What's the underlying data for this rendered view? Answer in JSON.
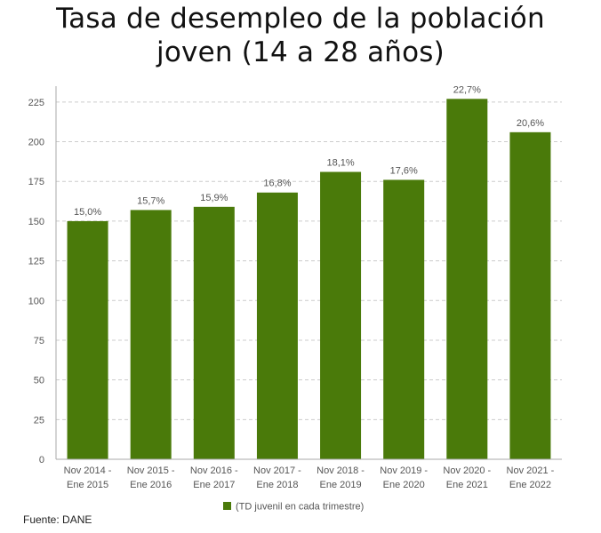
{
  "chart_data": {
    "type": "bar",
    "title": "Tasa de desempleo de la población joven (14 a 28 años)",
    "title_lines": [
      "Tasa de desempleo de la población",
      "joven (14 a 28 años)"
    ],
    "categories": [
      [
        "Nov 2014 -",
        "Ene 2015"
      ],
      [
        "Nov 2015 -",
        "Ene 2016"
      ],
      [
        "Nov 2016 -",
        "Ene 2017"
      ],
      [
        "Nov 2017 -",
        "Ene 2018"
      ],
      [
        "Nov 2018 -",
        "Ene 2019"
      ],
      [
        "Nov 2019 -",
        "Ene 2020"
      ],
      [
        "Nov 2020 -",
        "Ene 2021"
      ],
      [
        "Nov 2021 -",
        "Ene 2022"
      ]
    ],
    "series": [
      {
        "name": "(TD juvenil en cada trimestre)",
        "values": [
          150,
          157,
          159,
          168,
          181,
          176,
          227,
          206
        ],
        "data_labels": [
          "15,0%",
          "15,7%",
          "15,9%",
          "16,8%",
          "18,1%",
          "17,6%",
          "22,7%",
          "20,6%"
        ],
        "color": "#4a7a0a"
      }
    ],
    "ylim": [
      0,
      235
    ],
    "yticks": [
      0,
      25,
      50,
      75,
      100,
      125,
      150,
      175,
      200,
      225
    ],
    "xlabel": "",
    "ylabel": "",
    "grid": true,
    "legend_position": "bottom-center",
    "source": "Fuente: DANE",
    "colors": {
      "bar": "#4a7a0a",
      "grid": "#cccccc",
      "axis": "#aaaaaa",
      "text": "#555555"
    }
  }
}
